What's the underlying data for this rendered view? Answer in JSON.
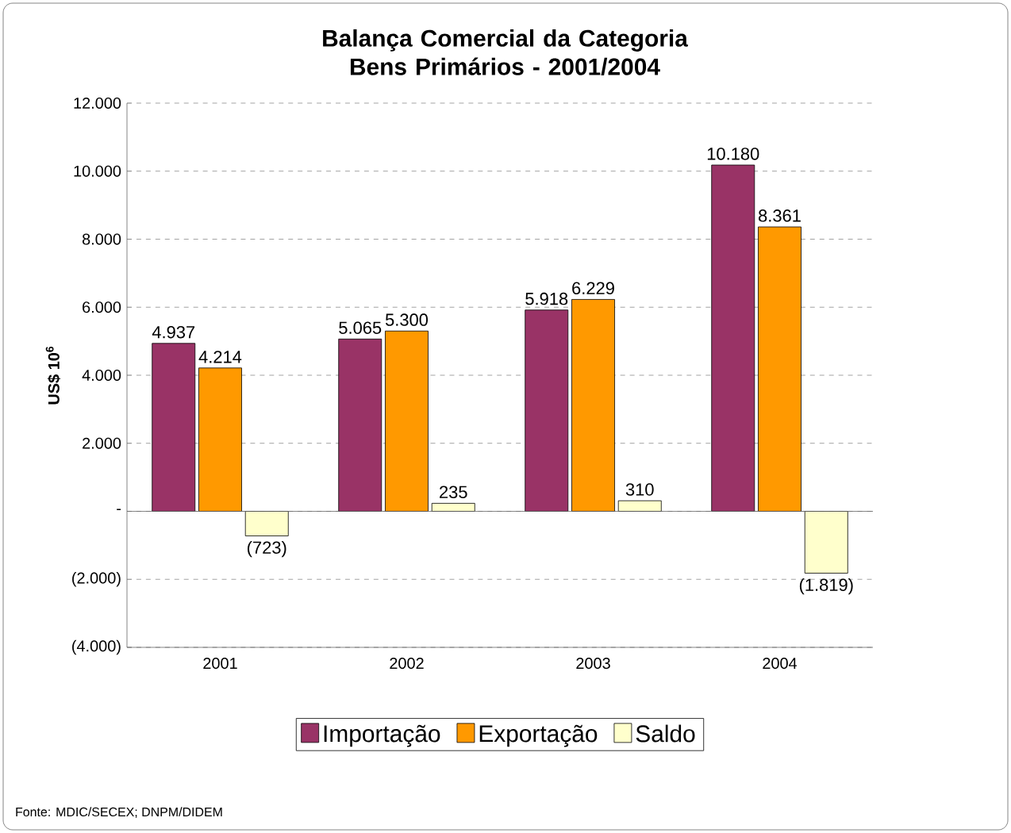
{
  "chart_data": {
    "type": "bar",
    "title": "Balança Comercial da Categoria Bens Primários - 2001/2004",
    "ylabel": "US$ 10$^{6}$",
    "categories": [
      "2001",
      "2002",
      "2003",
      "2004"
    ],
    "series": [
      {
        "name": "Importação",
        "color": "#993366",
        "values": [
          4937,
          5065,
          5918,
          10180
        ],
        "value_labels": [
          "4.937",
          "5.065",
          "5.918",
          "10.180"
        ]
      },
      {
        "name": "Exportação",
        "color": "#ff9900",
        "values": [
          4214,
          5300,
          6229,
          8361
        ],
        "value_labels": [
          "4.214",
          "5.300",
          "6.229",
          "8.361"
        ]
      },
      {
        "name": "Saldo",
        "color": "#ffffcc",
        "values": [
          -723,
          235,
          310,
          -1819
        ],
        "value_labels": [
          "(723)",
          "235",
          "310",
          "(1.819)"
        ]
      }
    ],
    "ylim": [
      -4000,
      12000
    ],
    "yticks": [
      {
        "value": -4000,
        "label": "(4.000)"
      },
      {
        "value": -2000,
        "label": "(2.000)"
      },
      {
        "value": 0,
        "label": "-"
      },
      {
        "value": 2000,
        "label": "2.000"
      },
      {
        "value": 4000,
        "label": "4.000"
      },
      {
        "value": 6000,
        "label": "6.000"
      },
      {
        "value": 8000,
        "label": "8.000"
      },
      {
        "value": 10000,
        "label": "10.000"
      },
      {
        "value": 12000,
        "label": "12.000"
      }
    ],
    "grid": "y",
    "legend": "bottom",
    "annotations": [
      "Fonte: MDIC/SECEX; DNPM/DIDEM"
    ]
  }
}
